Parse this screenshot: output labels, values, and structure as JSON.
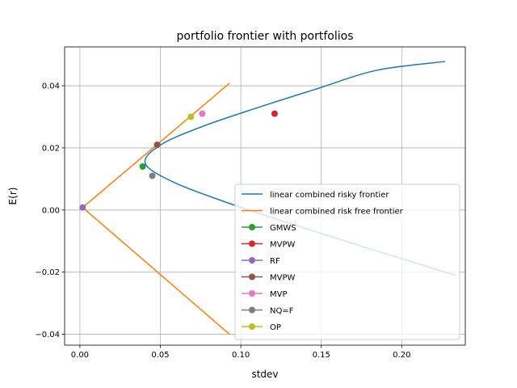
{
  "chart_data": {
    "type": "line",
    "title": "portfolio frontier with portfolios",
    "xlabel": "stdev",
    "ylabel": "E(r)",
    "xlim": [
      -0.0095,
      0.2395
    ],
    "ylim": [
      -0.0435,
      0.0525
    ],
    "xticks": [
      0.0,
      0.05,
      0.1,
      0.15,
      0.2
    ],
    "xtick_labels": [
      "0.00",
      "0.05",
      "0.10",
      "0.15",
      "0.20"
    ],
    "yticks": [
      -0.04,
      -0.02,
      0.0,
      0.02,
      0.04
    ],
    "ytick_labels": [
      "−0.04",
      "−0.02",
      "0.00",
      "0.02",
      "0.04"
    ],
    "grid": true,
    "legend_position": "lower-right",
    "series": [
      {
        "name": "linear combined risky frontier",
        "kind": "line",
        "color": "#1f77b4",
        "points": [
          [
            0.2334,
            -0.021
          ],
          [
            0.1958,
            -0.015
          ],
          [
            0.1587,
            -0.009
          ],
          [
            0.1225,
            -0.003
          ],
          [
            0.0881,
            0.003
          ],
          [
            0.058,
            0.009
          ],
          [
            0.0406,
            0.015
          ],
          [
            0.0503,
            0.021
          ],
          [
            0.0767,
            0.027
          ],
          [
            0.1108,
            0.033
          ],
          [
            0.1472,
            0.039
          ],
          [
            0.1847,
            0.045
          ],
          [
            0.227,
            0.0478
          ]
        ]
      },
      {
        "name": "linear combined risk free frontier",
        "kind": "line",
        "color": "#ff7f0e",
        "points": [
          [
            0.093,
            -0.04
          ],
          [
            0.0017,
            0.0008
          ],
          [
            0.093,
            0.0408
          ]
        ]
      },
      {
        "name": "GMWS",
        "kind": "marker",
        "color": "#2ca02c",
        "points": [
          [
            0.039,
            0.014
          ]
        ]
      },
      {
        "name": "MVPW",
        "kind": "marker",
        "color": "#d62728",
        "points": [
          [
            0.121,
            0.031
          ]
        ]
      },
      {
        "name": "RF",
        "kind": "marker",
        "color": "#9467bd",
        "points": [
          [
            0.0017,
            0.0008
          ]
        ]
      },
      {
        "name": "MVPW",
        "kind": "marker",
        "color": "#8c564b",
        "points": [
          [
            0.048,
            0.021
          ]
        ]
      },
      {
        "name": "MVP",
        "kind": "marker",
        "color": "#e377c2",
        "points": [
          [
            0.076,
            0.031
          ]
        ]
      },
      {
        "name": "NQ=F",
        "kind": "marker",
        "color": "#7f7f7f",
        "points": [
          [
            0.045,
            0.011
          ]
        ]
      },
      {
        "name": "OP",
        "kind": "marker",
        "color": "#bcbd22",
        "points": [
          [
            0.069,
            0.03
          ]
        ]
      }
    ]
  }
}
